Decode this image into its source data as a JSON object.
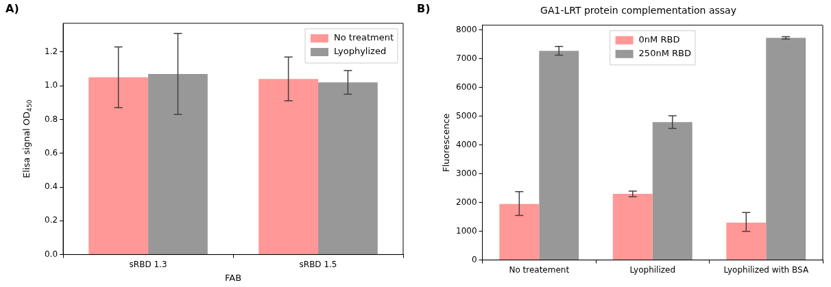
{
  "chart_data": [
    {
      "type": "bar",
      "annotations": [
        "A)"
      ],
      "xlabel": "FAB",
      "ylabel": "Elisa signal OD$_{450}$",
      "categories": [
        "sRBD 1.3",
        "sRBD 1.5"
      ],
      "series": [
        {
          "name": "No treatment",
          "color": "#ff9896",
          "values": [
            1.05,
            1.04
          ],
          "errors": [
            0.18,
            0.13
          ]
        },
        {
          "name": "Lyophylized",
          "color": "#989898",
          "values": [
            1.07,
            1.02
          ],
          "errors": [
            0.24,
            0.07
          ]
        }
      ],
      "ylim": [
        0,
        1.37
      ],
      "yticks": [
        {
          "value": 0,
          "label": "0.0"
        },
        {
          "value": 0.2,
          "label": "0.2"
        },
        {
          "value": 0.4,
          "label": "0.4"
        },
        {
          "value": 0.6,
          "label": "0.6"
        },
        {
          "value": 0.8,
          "label": "0.8"
        },
        {
          "value": 1,
          "label": "1.0"
        },
        {
          "value": 1.2,
          "label": "1.2"
        }
      ],
      "legend": "top right",
      "grid": false
    },
    {
      "type": "bar",
      "annotations": [
        "B)"
      ],
      "title": "GA1-LRT protein complementation assay",
      "ylabel": "Fluorescence",
      "categories": [
        "No treatement",
        "Lyophilized",
        "Lyophilized with BSA"
      ],
      "series": [
        {
          "name": "0nM RBD",
          "color": "#ff9896",
          "values": [
            1950,
            2300,
            1300
          ],
          "errors": [
            [
              1550,
              2380
            ],
            [
              2200,
              2400
            ],
            [
              1000,
              1650
            ]
          ]
        },
        {
          "name": "250nM RBD",
          "color": "#989898",
          "values": [
            7280,
            4800,
            7730
          ],
          "errors": [
            [
              7130,
              7430
            ],
            [
              4580,
              5020
            ],
            [
              7690,
              7770
            ]
          ]
        }
      ],
      "ylim": [
        0,
        8170
      ],
      "yticks": [
        0,
        1000,
        2000,
        3000,
        4000,
        5000,
        6000,
        7000,
        8000
      ],
      "legend": "top",
      "grid": false
    }
  ]
}
